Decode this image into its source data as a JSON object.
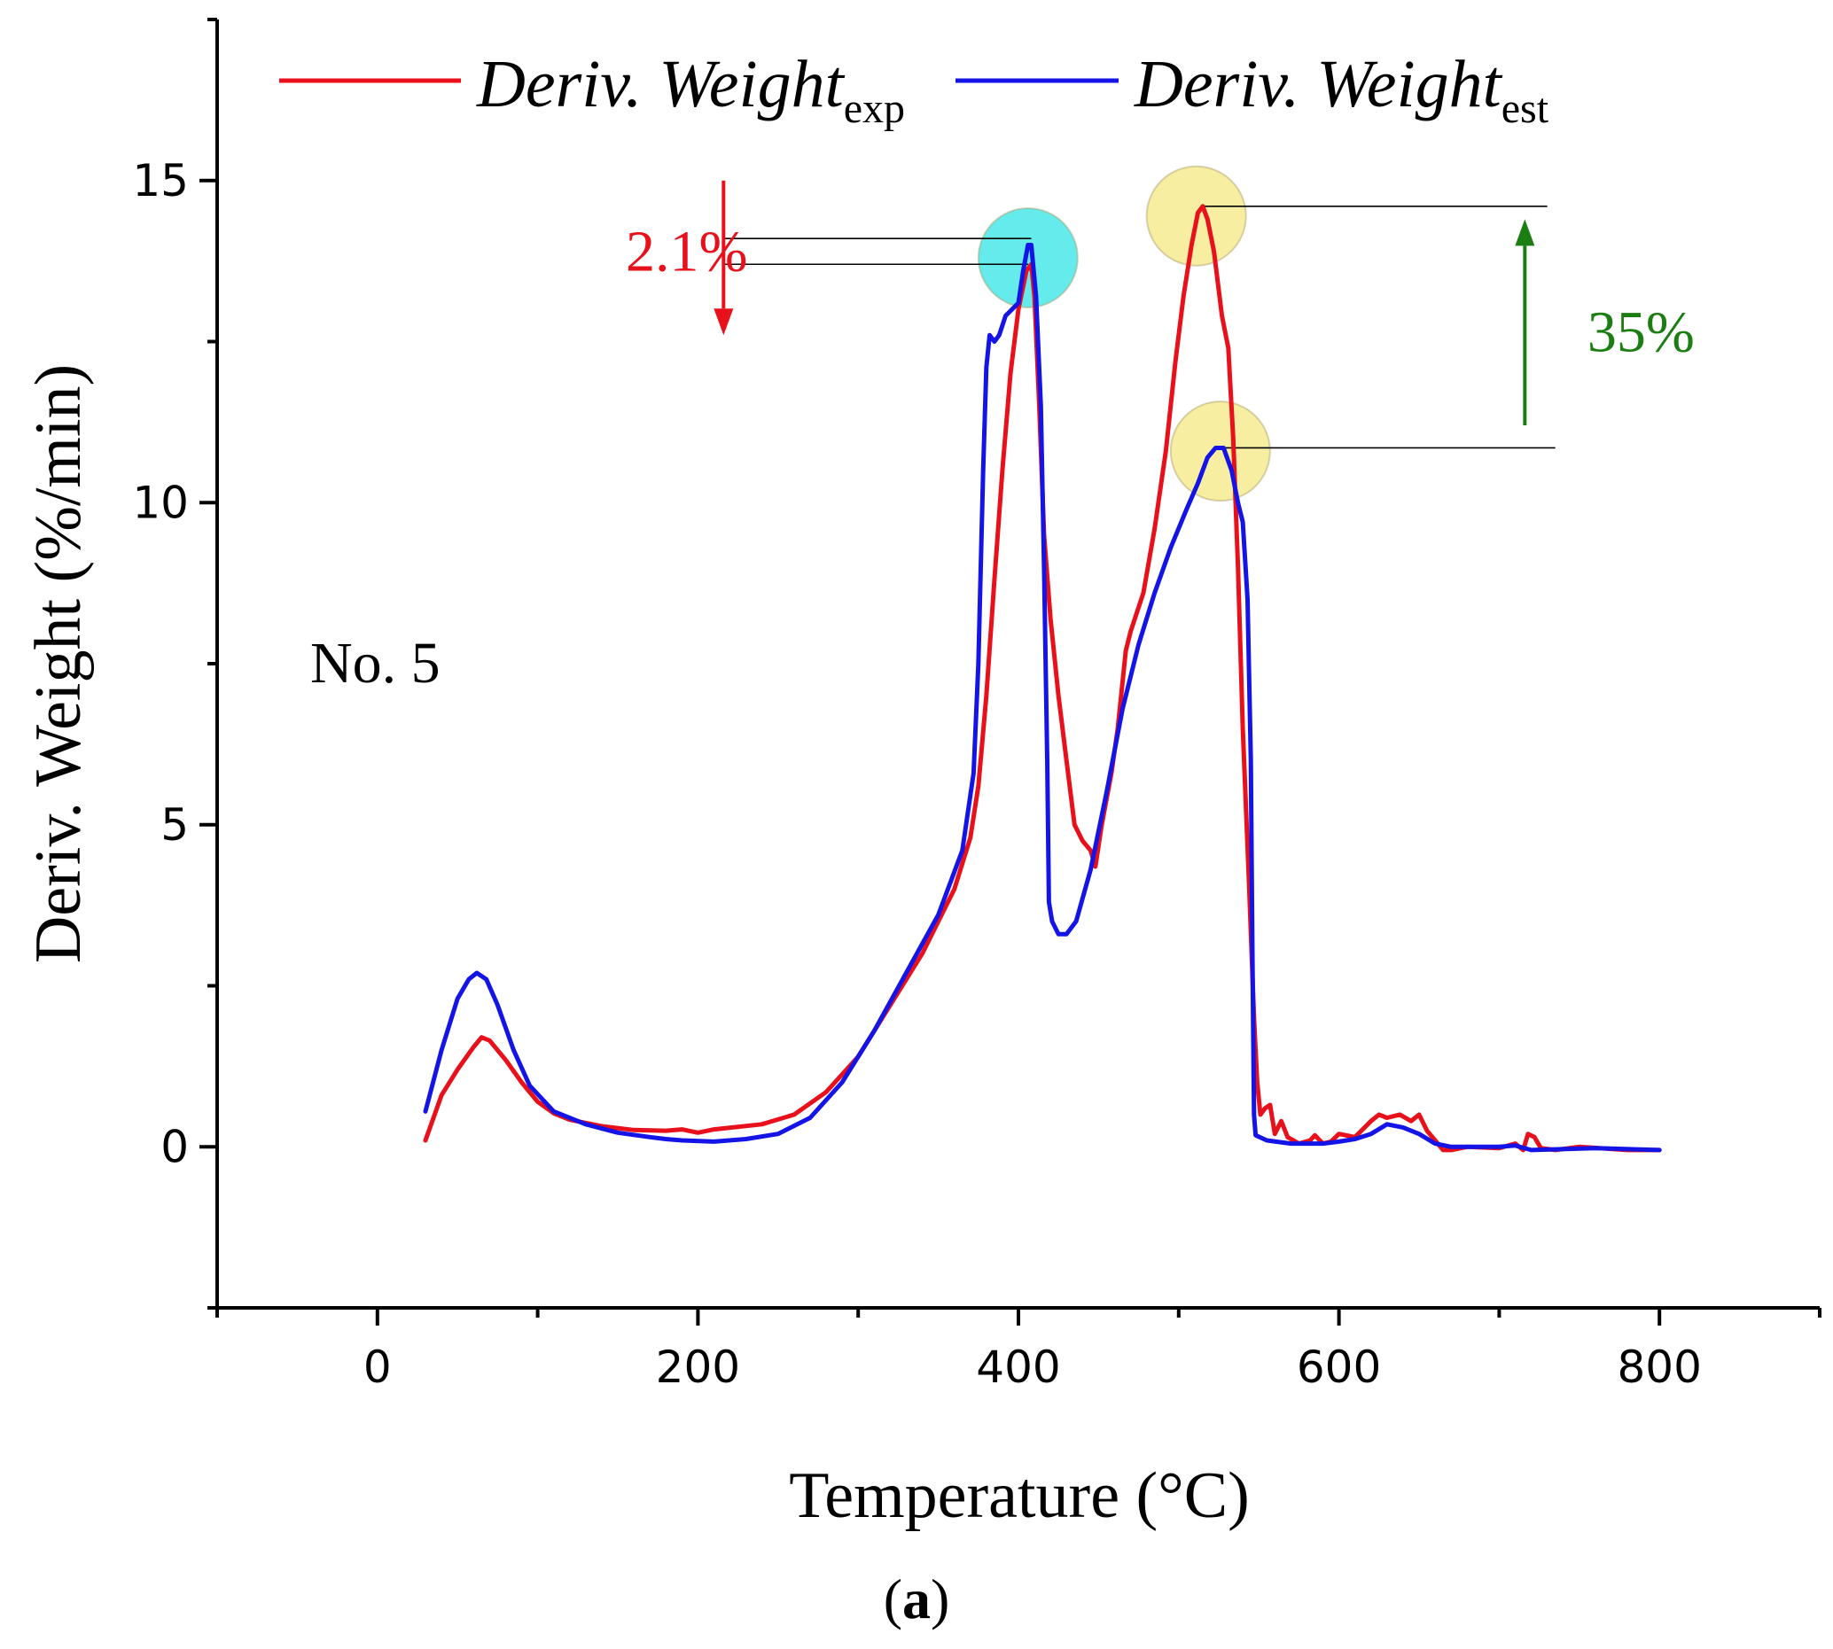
{
  "figure_label": "a",
  "chart_data": {
    "type": "line",
    "xlabel": "Temperature (°C)",
    "ylabel": "Deriv. Weight (%/min)",
    "xlim": [
      -100,
      900
    ],
    "ylim": [
      -2.5,
      17.5
    ],
    "x_ticks": [
      0,
      200,
      400,
      600,
      800
    ],
    "x_tick_labels": [
      "0",
      "200",
      "400",
      "600",
      "800"
    ],
    "y_ticks": [
      0,
      5,
      10,
      15
    ],
    "y_tick_labels": [
      "0",
      "5",
      "10",
      "15"
    ],
    "sample_label": "No. 5",
    "legend": [
      {
        "name": "Deriv. Weight",
        "subscript": "exp",
        "color": "#e8101a"
      },
      {
        "name": "Deriv. Weight",
        "subscript": "est",
        "color": "#1414e6"
      }
    ],
    "series": [
      {
        "name": "Deriv. Weight exp",
        "color": "#e8101a",
        "points": [
          [
            30,
            0.1
          ],
          [
            40,
            0.8
          ],
          [
            50,
            1.2
          ],
          [
            60,
            1.55
          ],
          [
            65,
            1.7
          ],
          [
            70,
            1.65
          ],
          [
            80,
            1.35
          ],
          [
            90,
            1.0
          ],
          [
            100,
            0.7
          ],
          [
            110,
            0.52
          ],
          [
            120,
            0.42
          ],
          [
            140,
            0.32
          ],
          [
            160,
            0.26
          ],
          [
            180,
            0.25
          ],
          [
            190,
            0.27
          ],
          [
            200,
            0.22
          ],
          [
            210,
            0.27
          ],
          [
            240,
            0.35
          ],
          [
            260,
            0.5
          ],
          [
            280,
            0.85
          ],
          [
            300,
            1.4
          ],
          [
            320,
            2.2
          ],
          [
            340,
            3.0
          ],
          [
            360,
            4.0
          ],
          [
            370,
            4.8
          ],
          [
            375,
            5.6
          ],
          [
            380,
            7.0
          ],
          [
            385,
            8.8
          ],
          [
            390,
            10.5
          ],
          [
            395,
            12.0
          ],
          [
            400,
            13.0
          ],
          [
            405,
            13.6
          ],
          [
            408,
            13.7
          ],
          [
            410,
            13.2
          ],
          [
            413,
            11.5
          ],
          [
            416,
            9.5
          ],
          [
            420,
            8.2
          ],
          [
            425,
            7.0
          ],
          [
            430,
            6.0
          ],
          [
            435,
            5.0
          ],
          [
            440,
            4.75
          ],
          [
            445,
            4.6
          ],
          [
            448,
            4.35
          ],
          [
            452,
            5.0
          ],
          [
            458,
            5.8
          ],
          [
            462,
            6.5
          ],
          [
            467,
            7.7
          ],
          [
            470,
            8.0
          ],
          [
            478,
            8.6
          ],
          [
            485,
            9.6
          ],
          [
            492,
            10.8
          ],
          [
            498,
            12.2
          ],
          [
            503,
            13.2
          ],
          [
            508,
            14.0
          ],
          [
            512,
            14.5
          ],
          [
            515,
            14.6
          ],
          [
            518,
            14.4
          ],
          [
            522,
            13.9
          ],
          [
            527,
            12.9
          ],
          [
            531,
            12.4
          ],
          [
            534,
            11.0
          ],
          [
            537,
            9.0
          ],
          [
            540,
            6.5
          ],
          [
            544,
            4.0
          ],
          [
            547,
            2.0
          ],
          [
            549,
            1.0
          ],
          [
            551,
            0.5
          ],
          [
            554,
            0.6
          ],
          [
            557,
            0.65
          ],
          [
            560,
            0.2
          ],
          [
            564,
            0.4
          ],
          [
            568,
            0.15
          ],
          [
            575,
            0.05
          ],
          [
            582,
            0.1
          ],
          [
            585,
            0.18
          ],
          [
            590,
            0.05
          ],
          [
            595,
            0.08
          ],
          [
            600,
            0.2
          ],
          [
            610,
            0.15
          ],
          [
            620,
            0.4
          ],
          [
            625,
            0.5
          ],
          [
            630,
            0.45
          ],
          [
            638,
            0.5
          ],
          [
            645,
            0.4
          ],
          [
            650,
            0.5
          ],
          [
            655,
            0.25
          ],
          [
            660,
            0.1
          ],
          [
            665,
            -0.05
          ],
          [
            670,
            -0.05
          ],
          [
            680,
            0.0
          ],
          [
            700,
            -0.02
          ],
          [
            710,
            0.05
          ],
          [
            715,
            -0.05
          ],
          [
            718,
            0.2
          ],
          [
            722,
            0.15
          ],
          [
            726,
            -0.02
          ],
          [
            735,
            -0.05
          ],
          [
            750,
            0.0
          ],
          [
            780,
            -0.05
          ],
          [
            800,
            -0.05
          ]
        ]
      },
      {
        "name": "Deriv. Weight est",
        "color": "#1414e6",
        "points": [
          [
            30,
            0.55
          ],
          [
            40,
            1.5
          ],
          [
            50,
            2.3
          ],
          [
            57,
            2.6
          ],
          [
            62,
            2.7
          ],
          [
            68,
            2.6
          ],
          [
            75,
            2.2
          ],
          [
            85,
            1.5
          ],
          [
            95,
            0.95
          ],
          [
            110,
            0.55
          ],
          [
            130,
            0.35
          ],
          [
            150,
            0.22
          ],
          [
            170,
            0.15
          ],
          [
            180,
            0.12
          ],
          [
            190,
            0.1
          ],
          [
            210,
            0.08
          ],
          [
            230,
            0.12
          ],
          [
            250,
            0.2
          ],
          [
            270,
            0.45
          ],
          [
            290,
            1.0
          ],
          [
            310,
            1.8
          ],
          [
            330,
            2.7
          ],
          [
            350,
            3.6
          ],
          [
            365,
            4.6
          ],
          [
            372,
            5.8
          ],
          [
            375,
            7.5
          ],
          [
            378,
            10.5
          ],
          [
            380,
            12.1
          ],
          [
            382,
            12.6
          ],
          [
            385,
            12.5
          ],
          [
            388,
            12.6
          ],
          [
            392,
            12.9
          ],
          [
            396,
            13.0
          ],
          [
            400,
            13.1
          ],
          [
            403,
            13.6
          ],
          [
            406,
            14.0
          ],
          [
            408,
            14.0
          ],
          [
            411,
            13.2
          ],
          [
            414,
            11.5
          ],
          [
            416,
            9.0
          ],
          [
            418,
            6.0
          ],
          [
            419,
            3.8
          ],
          [
            421,
            3.5
          ],
          [
            425,
            3.3
          ],
          [
            430,
            3.3
          ],
          [
            436,
            3.5
          ],
          [
            445,
            4.3
          ],
          [
            455,
            5.5
          ],
          [
            465,
            6.8
          ],
          [
            475,
            7.8
          ],
          [
            485,
            8.6
          ],
          [
            495,
            9.3
          ],
          [
            505,
            9.9
          ],
          [
            512,
            10.3
          ],
          [
            518,
            10.7
          ],
          [
            523,
            10.85
          ],
          [
            528,
            10.85
          ],
          [
            533,
            10.5
          ],
          [
            537,
            10.0
          ],
          [
            540,
            9.7
          ],
          [
            543,
            8.5
          ],
          [
            545,
            6.0
          ],
          [
            546,
            3.0
          ],
          [
            547,
            0.5
          ],
          [
            548,
            0.18
          ],
          [
            555,
            0.1
          ],
          [
            570,
            0.05
          ],
          [
            590,
            0.05
          ],
          [
            600,
            0.08
          ],
          [
            610,
            0.12
          ],
          [
            620,
            0.2
          ],
          [
            630,
            0.35
          ],
          [
            640,
            0.3
          ],
          [
            650,
            0.2
          ],
          [
            660,
            0.05
          ],
          [
            670,
            0.0
          ],
          [
            700,
            0.0
          ],
          [
            710,
            0.02
          ],
          [
            720,
            -0.05
          ],
          [
            760,
            -0.02
          ],
          [
            800,
            -0.05
          ]
        ]
      }
    ],
    "annotations": [
      {
        "text": "2.1%",
        "color": "#e8101a",
        "arrow": "down",
        "arrow_x": 216,
        "arrow_from": 15.0,
        "arrow_to": 12.6,
        "label_at": [
          155,
          13.9
        ]
      },
      {
        "text": "35%",
        "color": "#1b7d12",
        "arrow": "up",
        "arrow_x": 716,
        "arrow_from": 11.2,
        "arrow_to": 14.4,
        "label_at": [
          755,
          12.65
        ]
      }
    ],
    "highlight_markers": [
      {
        "x": 406,
        "y": 13.8,
        "color": "#3fe6e6"
      },
      {
        "x": 511,
        "y": 14.45,
        "color": "#f6ea8a"
      },
      {
        "x": 526,
        "y": 10.8,
        "color": "#f6ea8a"
      }
    ],
    "reference_lines": [
      {
        "y": 14.1,
        "x_from": 215,
        "x_to": 408
      },
      {
        "y": 13.7,
        "x_from": 215,
        "x_to": 406
      },
      {
        "y": 14.6,
        "x_from": 515,
        "x_to": 730
      },
      {
        "y": 10.85,
        "x_from": 527,
        "x_to": 735
      }
    ]
  }
}
